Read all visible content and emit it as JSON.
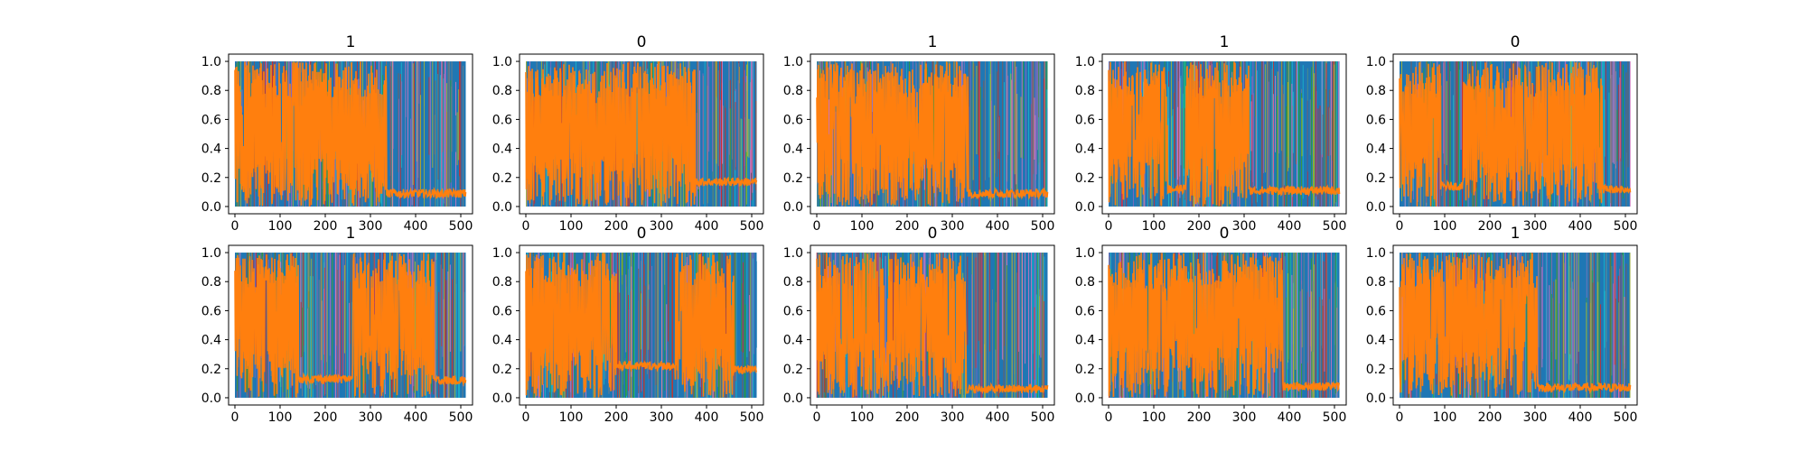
{
  "chart_data": {
    "type": "line",
    "layout": "grid 2 rows x 5 columns",
    "xlim": [
      -14,
      526
    ],
    "ylim": [
      -0.05,
      1.05
    ],
    "xticks": [
      0,
      100,
      200,
      300,
      400,
      500
    ],
    "yticks": [
      0.0,
      0.2,
      0.4,
      0.6,
      0.8,
      1.0
    ],
    "xtick_labels": [
      "0",
      "100",
      "200",
      "300",
      "400",
      "500"
    ],
    "ytick_labels": [
      "0.0",
      "0.2",
      "0.4",
      "0.6",
      "0.8",
      "1.0"
    ],
    "n_points": 512,
    "series_colors": [
      "#1f77b4",
      "#17becf",
      "#bcbd22",
      "#2ca02c",
      "#9467bd",
      "#e377c2",
      "#d62728",
      "#8c564b",
      "#7f7f7f",
      "#ff7f0e"
    ],
    "highlight_color": "#ff7f0e",
    "background_color": "#1f77b4",
    "panels": [
      {
        "title": "1",
        "orange_segments": [
          {
            "x": [
              0,
              335
            ],
            "kind": "dense"
          },
          {
            "x": [
              335,
              511
            ],
            "kind": "low",
            "level": 0.09
          }
        ]
      },
      {
        "title": "0",
        "orange_segments": [
          {
            "x": [
              0,
              375
            ],
            "kind": "dense"
          },
          {
            "x": [
              375,
              511
            ],
            "kind": "low",
            "level": 0.17
          }
        ]
      },
      {
        "title": "1",
        "orange_segments": [
          {
            "x": [
              0,
              335
            ],
            "kind": "dense"
          },
          {
            "x": [
              335,
              511
            ],
            "kind": "low",
            "level": 0.09
          }
        ]
      },
      {
        "title": "1",
        "orange_segments": [
          {
            "x": [
              0,
              130
            ],
            "kind": "dense"
          },
          {
            "x": [
              130,
              170
            ],
            "kind": "low",
            "level": 0.12
          },
          {
            "x": [
              170,
              310
            ],
            "kind": "dense"
          },
          {
            "x": [
              310,
              511
            ],
            "kind": "low",
            "level": 0.11
          }
        ]
      },
      {
        "title": "0",
        "orange_segments": [
          {
            "x": [
              0,
              90
            ],
            "kind": "dense"
          },
          {
            "x": [
              90,
              140
            ],
            "kind": "low",
            "level": 0.14
          },
          {
            "x": [
              140,
              450
            ],
            "kind": "dense"
          },
          {
            "x": [
              450,
              511
            ],
            "kind": "low",
            "level": 0.12
          }
        ]
      },
      {
        "title": "1",
        "orange_segments": [
          {
            "x": [
              0,
              140
            ],
            "kind": "dense"
          },
          {
            "x": [
              140,
              260
            ],
            "kind": "low",
            "level": 0.13
          },
          {
            "x": [
              260,
              440
            ],
            "kind": "dense"
          },
          {
            "x": [
              440,
              511
            ],
            "kind": "low",
            "level": 0.12
          }
        ]
      },
      {
        "title": "0",
        "orange_segments": [
          {
            "x": [
              0,
              200
            ],
            "kind": "dense"
          },
          {
            "x": [
              200,
              330
            ],
            "kind": "low",
            "level": 0.22
          },
          {
            "x": [
              330,
              460
            ],
            "kind": "dense"
          },
          {
            "x": [
              460,
              511
            ],
            "kind": "low",
            "level": 0.19
          }
        ]
      },
      {
        "title": "0",
        "orange_segments": [
          {
            "x": [
              0,
              330
            ],
            "kind": "dense"
          },
          {
            "x": [
              330,
              511
            ],
            "kind": "low",
            "level": 0.06
          }
        ]
      },
      {
        "title": "0",
        "orange_segments": [
          {
            "x": [
              0,
              385
            ],
            "kind": "dense"
          },
          {
            "x": [
              385,
              511
            ],
            "kind": "low",
            "level": 0.08
          }
        ]
      },
      {
        "title": "1",
        "orange_segments": [
          {
            "x": [
              0,
              305
            ],
            "kind": "dense"
          },
          {
            "x": [
              305,
              511
            ],
            "kind": "low",
            "level": 0.07
          }
        ]
      }
    ]
  }
}
